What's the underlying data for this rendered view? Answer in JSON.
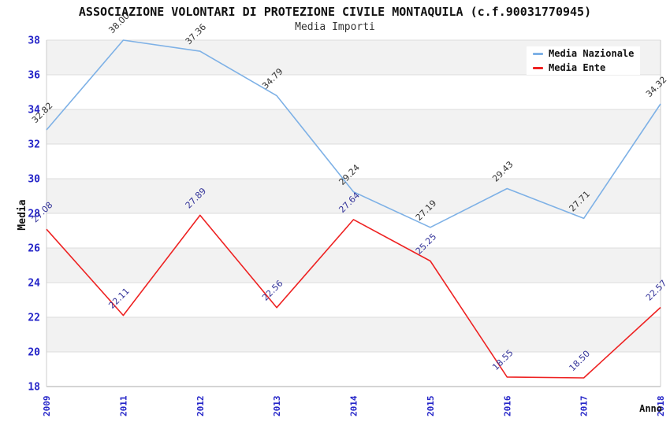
{
  "header": {
    "title": "ASSOCIAZIONE VOLONTARI DI PROTEZIONE CIVILE MONTAQUILA (c.f.90031770945)",
    "subtitle": "Media Importi"
  },
  "axes": {
    "x_title": "Anno",
    "y_title": "Media"
  },
  "legend": {
    "position": "top-right",
    "items": [
      {
        "label": "Media Nazionale",
        "color": "#7eb1e6"
      },
      {
        "label": "Media Ente",
        "color": "#ee2222"
      }
    ]
  },
  "chart_data": {
    "type": "line",
    "title": "ASSOCIAZIONE VOLONTARI DI PROTEZIONE CIVILE MONTAQUILA (c.f.90031770945)",
    "subtitle": "Media Importi",
    "xlabel": "Anno",
    "ylabel": "Media",
    "categories": [
      "2009",
      "2011",
      "2012",
      "2013",
      "2014",
      "2015",
      "2016",
      "2017",
      "2018"
    ],
    "series": [
      {
        "name": "Media Nazionale",
        "color": "#7eb1e6",
        "label_color": "#333333",
        "values": [
          32.82,
          38.0,
          37.36,
          34.79,
          29.24,
          27.19,
          29.43,
          27.71,
          34.32
        ]
      },
      {
        "name": "Media Ente",
        "color": "#ee2222",
        "label_color": "#333399",
        "values": [
          27.08,
          22.11,
          27.89,
          22.56,
          27.64,
          25.25,
          18.55,
          18.5,
          22.57
        ]
      }
    ],
    "ylim": [
      18,
      38
    ],
    "ytick_step": 2,
    "grid": "horizontal-bands-alternating",
    "legend_position": "top-right",
    "point_labels": "values-rotated-45",
    "style": {
      "band_color": "#f2f2f2",
      "gridline_color": "#dcdcdc",
      "axis_line_color": "#aaaaaa",
      "border_color": "#cccccc",
      "tick_label_color": "#2424c8"
    }
  }
}
